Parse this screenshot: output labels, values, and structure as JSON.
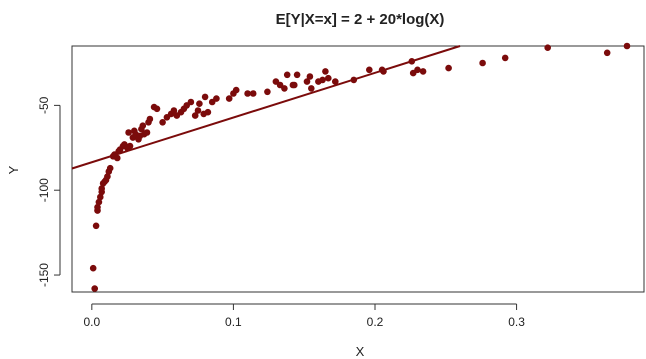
{
  "chart_data": {
    "type": "scatter",
    "title": "E[Y|X=x] = 2 + 20*log(X)",
    "xlabel": "X",
    "ylabel": "Y",
    "xlim": [
      -0.014,
      0.39
    ],
    "ylim": [
      -160,
      -15
    ],
    "x_ticks": [
      0.0,
      0.1,
      0.2,
      0.3
    ],
    "x_tick_labels": [
      "0.0",
      "0.1",
      "0.2",
      "0.3"
    ],
    "y_ticks": [
      -150,
      -100,
      -50
    ],
    "y_tick_labels": [
      "-150",
      "-100",
      "-50"
    ],
    "grid": false,
    "legend": "none",
    "colors": {
      "points": "#7b0b0b",
      "line": "#7b0b0b",
      "axes": "#333333"
    },
    "points": [
      {
        "x": 0.001,
        "y": -146
      },
      {
        "x": 0.002,
        "y": -158
      },
      {
        "x": 0.003,
        "y": -121
      },
      {
        "x": 0.004,
        "y": -112
      },
      {
        "x": 0.004,
        "y": -110
      },
      {
        "x": 0.005,
        "y": -107
      },
      {
        "x": 0.006,
        "y": -104
      },
      {
        "x": 0.007,
        "y": -101
      },
      {
        "x": 0.007,
        "y": -99
      },
      {
        "x": 0.008,
        "y": -96
      },
      {
        "x": 0.009,
        "y": -95
      },
      {
        "x": 0.01,
        "y": -94
      },
      {
        "x": 0.011,
        "y": -92
      },
      {
        "x": 0.012,
        "y": -89
      },
      {
        "x": 0.013,
        "y": -87
      },
      {
        "x": 0.015,
        "y": -80
      },
      {
        "x": 0.016,
        "y": -79
      },
      {
        "x": 0.018,
        "y": -81
      },
      {
        "x": 0.019,
        "y": -77
      },
      {
        "x": 0.02,
        "y": -76
      },
      {
        "x": 0.022,
        "y": -74
      },
      {
        "x": 0.023,
        "y": -73
      },
      {
        "x": 0.025,
        "y": -75
      },
      {
        "x": 0.026,
        "y": -66
      },
      {
        "x": 0.027,
        "y": -74
      },
      {
        "x": 0.029,
        "y": -69
      },
      {
        "x": 0.03,
        "y": -65
      },
      {
        "x": 0.031,
        "y": -67
      },
      {
        "x": 0.033,
        "y": -70
      },
      {
        "x": 0.034,
        "y": -68
      },
      {
        "x": 0.035,
        "y": -64
      },
      {
        "x": 0.036,
        "y": -62
      },
      {
        "x": 0.037,
        "y": -67
      },
      {
        "x": 0.039,
        "y": -66
      },
      {
        "x": 0.04,
        "y": -60
      },
      {
        "x": 0.041,
        "y": -58
      },
      {
        "x": 0.044,
        "y": -51
      },
      {
        "x": 0.046,
        "y": -52
      },
      {
        "x": 0.05,
        "y": -60
      },
      {
        "x": 0.053,
        "y": -57
      },
      {
        "x": 0.056,
        "y": -55
      },
      {
        "x": 0.058,
        "y": -53
      },
      {
        "x": 0.06,
        "y": -56
      },
      {
        "x": 0.063,
        "y": -54
      },
      {
        "x": 0.065,
        "y": -52
      },
      {
        "x": 0.067,
        "y": -50
      },
      {
        "x": 0.07,
        "y": -48
      },
      {
        "x": 0.073,
        "y": -56
      },
      {
        "x": 0.075,
        "y": -53
      },
      {
        "x": 0.076,
        "y": -49
      },
      {
        "x": 0.079,
        "y": -55
      },
      {
        "x": 0.08,
        "y": -45
      },
      {
        "x": 0.082,
        "y": -54
      },
      {
        "x": 0.085,
        "y": -48
      },
      {
        "x": 0.088,
        "y": -46
      },
      {
        "x": 0.097,
        "y": -46
      },
      {
        "x": 0.1,
        "y": -43
      },
      {
        "x": 0.102,
        "y": -41
      },
      {
        "x": 0.11,
        "y": -43
      },
      {
        "x": 0.114,
        "y": -43
      },
      {
        "x": 0.124,
        "y": -42
      },
      {
        "x": 0.13,
        "y": -36
      },
      {
        "x": 0.133,
        "y": -38
      },
      {
        "x": 0.136,
        "y": -40
      },
      {
        "x": 0.138,
        "y": -32
      },
      {
        "x": 0.142,
        "y": -38
      },
      {
        "x": 0.143,
        "y": -38
      },
      {
        "x": 0.145,
        "y": -32
      },
      {
        "x": 0.152,
        "y": -36
      },
      {
        "x": 0.154,
        "y": -33
      },
      {
        "x": 0.155,
        "y": -40
      },
      {
        "x": 0.16,
        "y": -36
      },
      {
        "x": 0.163,
        "y": -35
      },
      {
        "x": 0.165,
        "y": -30
      },
      {
        "x": 0.167,
        "y": -34
      },
      {
        "x": 0.172,
        "y": -36
      },
      {
        "x": 0.185,
        "y": -35
      },
      {
        "x": 0.196,
        "y": -29
      },
      {
        "x": 0.205,
        "y": -29
      },
      {
        "x": 0.206,
        "y": -30
      },
      {
        "x": 0.226,
        "y": -24
      },
      {
        "x": 0.227,
        "y": -31
      },
      {
        "x": 0.23,
        "y": -29
      },
      {
        "x": 0.234,
        "y": -30
      },
      {
        "x": 0.252,
        "y": -28
      },
      {
        "x": 0.276,
        "y": -25
      },
      {
        "x": 0.292,
        "y": -22
      },
      {
        "x": 0.322,
        "y": -16
      },
      {
        "x": 0.364,
        "y": -19
      },
      {
        "x": 0.378,
        "y": -15
      }
    ],
    "fit_line": {
      "x": [
        -0.014,
        0.279
      ],
      "y": [
        -87.2,
        -10
      ]
    }
  }
}
